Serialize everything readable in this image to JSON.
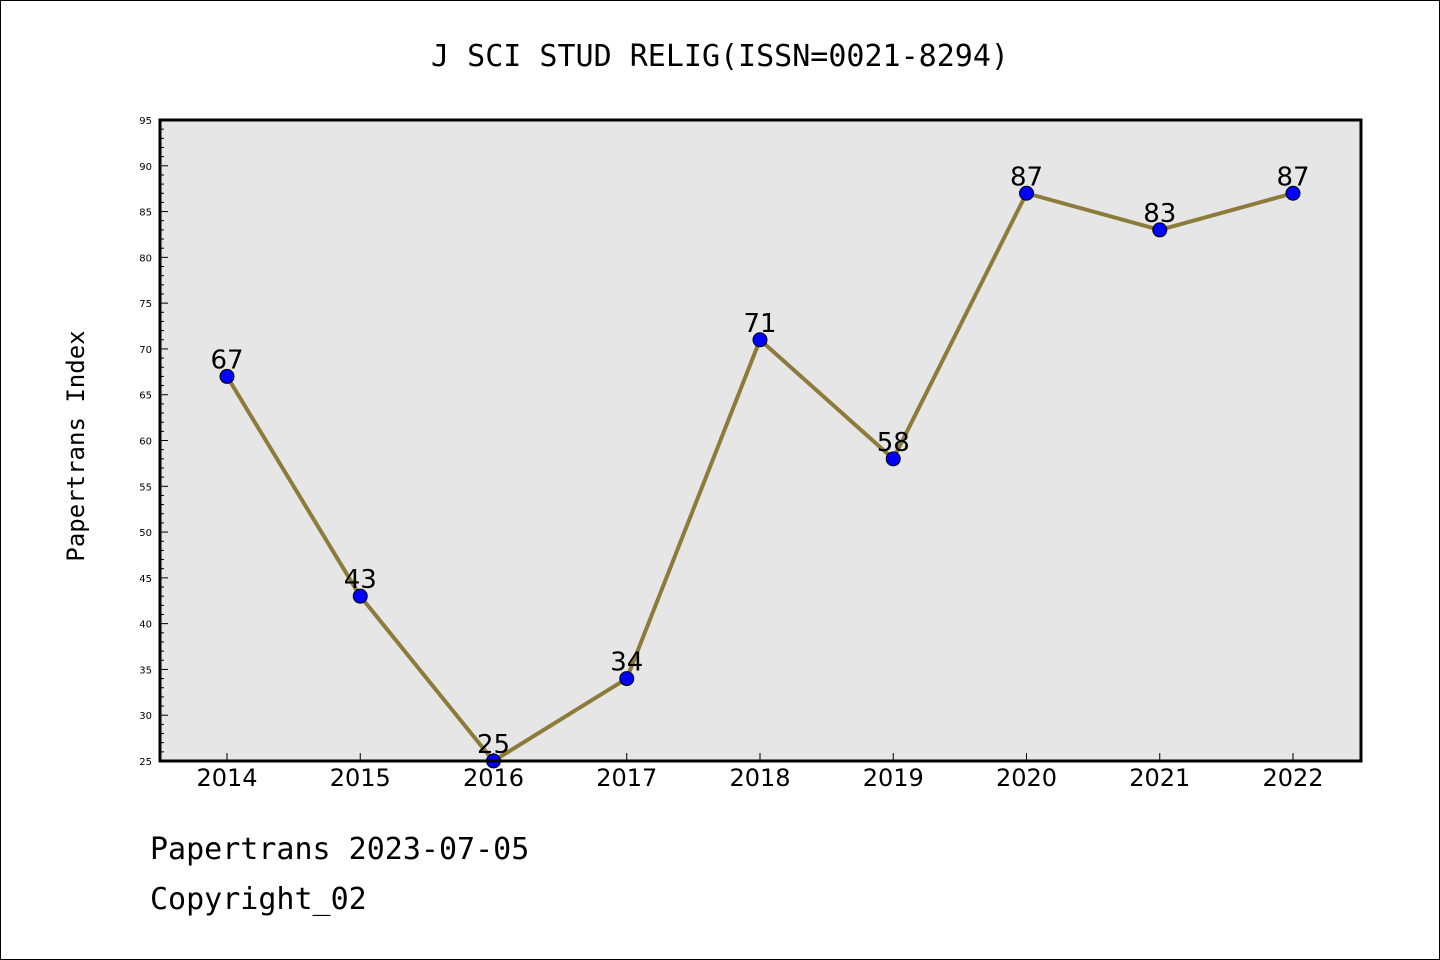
{
  "chart_data": {
    "type": "line",
    "title": "J SCI STUD RELIG(ISSN=0021-8294)",
    "xlabel": "",
    "ylabel": "Papertrans Index",
    "categories": [
      "2014",
      "2015",
      "2016",
      "2017",
      "2018",
      "2019",
      "2020",
      "2021",
      "2022"
    ],
    "series": [
      {
        "values": [
          67,
          43,
          25,
          34,
          71,
          58,
          87,
          83,
          87
        ]
      }
    ],
    "ylim": [
      25,
      95
    ],
    "yticks": [
      25,
      30,
      35,
      40,
      45,
      50,
      55,
      60,
      65,
      70,
      75,
      80,
      85,
      90,
      95
    ],
    "grid": false,
    "data_labels": true,
    "colors": {
      "line": "#8c7b3a",
      "marker": "#0000ff",
      "plot_bg": "#e6e6e6"
    }
  },
  "footer": {
    "line1": "Papertrans 2023-07-05",
    "line2": "Copyright_02"
  }
}
